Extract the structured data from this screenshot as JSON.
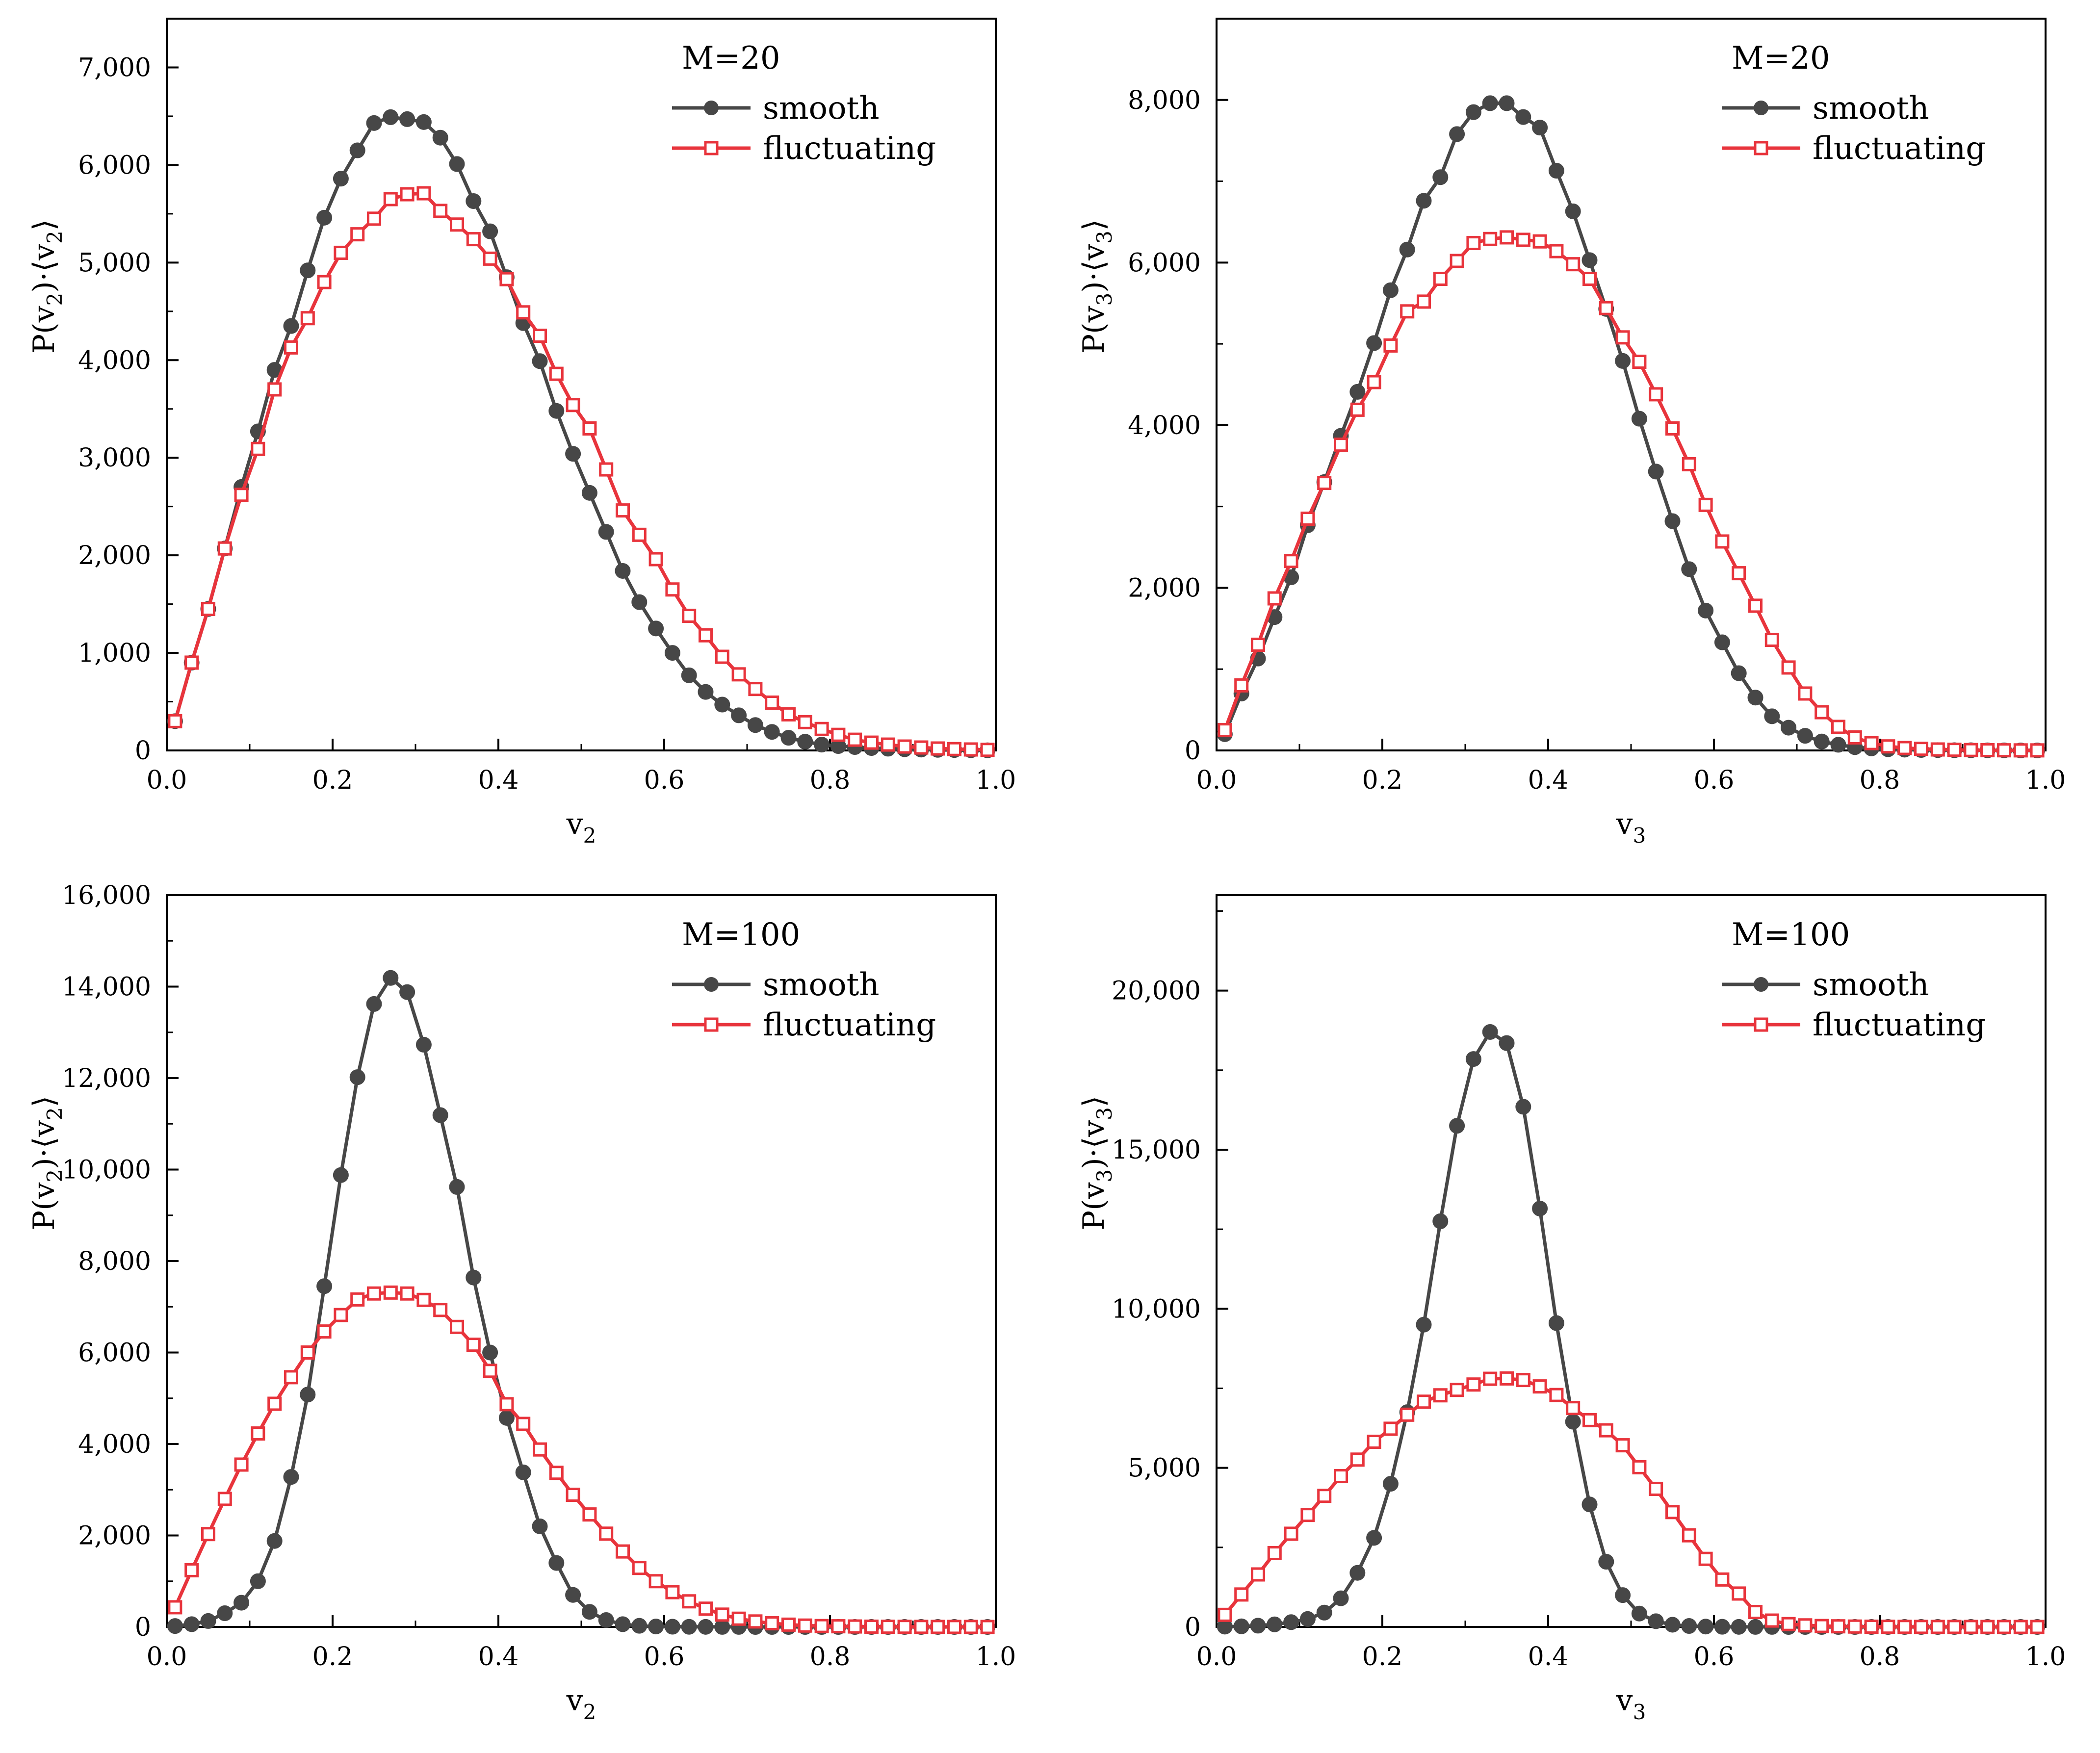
{
  "figure": {
    "series_colors": {
      "smooth": "#474747",
      "fluctuating": "#e8343c"
    },
    "marker_shapes": {
      "smooth": "filled-circle",
      "fluctuating": "open-square"
    }
  },
  "chart_data": [
    {
      "id": "top-left",
      "type": "line",
      "legend_title": "M=20",
      "legend_position": "top-right",
      "xlabel": "v",
      "xlabel_sub": "2",
      "ylabel_parts": [
        "P(v",
        "2",
        ")·⟨v",
        "2",
        "⟩"
      ],
      "xlim": [
        0,
        1
      ],
      "ylim": [
        0,
        7500
      ],
      "xticks": [
        0,
        0.2,
        0.4,
        0.6,
        0.8,
        1.0
      ],
      "xtick_labels": [
        "0.0",
        "0.2",
        "0.4",
        "0.6",
        "0.8",
        "1.0"
      ],
      "yticks": [
        0,
        1000,
        2000,
        3000,
        4000,
        5000,
        6000,
        7000
      ],
      "ytick_labels": [
        "0",
        "1,000",
        "2,000",
        "3,000",
        "4,000",
        "5,000",
        "6,000",
        "7,000"
      ],
      "x": [
        0.01,
        0.03,
        0.05,
        0.07,
        0.09,
        0.11,
        0.13,
        0.15,
        0.17,
        0.19,
        0.21,
        0.23,
        0.25,
        0.27,
        0.29,
        0.31,
        0.33,
        0.35,
        0.37,
        0.39,
        0.41,
        0.43,
        0.45,
        0.47,
        0.49,
        0.51,
        0.53,
        0.55,
        0.57,
        0.59,
        0.61,
        0.63,
        0.65,
        0.67,
        0.69,
        0.71,
        0.73,
        0.75,
        0.77,
        0.79,
        0.81,
        0.83,
        0.85,
        0.87,
        0.89,
        0.91,
        0.93,
        0.95,
        0.97,
        0.99
      ],
      "series": [
        {
          "name": "smooth",
          "values": [
            300,
            900,
            1450,
            2070,
            2700,
            3270,
            3900,
            4350,
            4920,
            5460,
            5860,
            6150,
            6430,
            6490,
            6470,
            6440,
            6280,
            6010,
            5630,
            5320,
            4850,
            4380,
            3990,
            3480,
            3040,
            2640,
            2240,
            1840,
            1520,
            1250,
            1000,
            770,
            600,
            470,
            360,
            260,
            190,
            130,
            90,
            60,
            45,
            35,
            25,
            18,
            12,
            9,
            6,
            4,
            2,
            1
          ]
        },
        {
          "name": "fluctuating",
          "values": [
            300,
            900,
            1450,
            2070,
            2620,
            3090,
            3700,
            4130,
            4430,
            4800,
            5100,
            5290,
            5450,
            5650,
            5700,
            5710,
            5530,
            5390,
            5240,
            5040,
            4830,
            4490,
            4250,
            3860,
            3540,
            3300,
            2880,
            2460,
            2210,
            1960,
            1650,
            1380,
            1180,
            960,
            780,
            630,
            490,
            370,
            290,
            220,
            160,
            110,
            80,
            60,
            40,
            30,
            20,
            14,
            10,
            6
          ]
        }
      ]
    },
    {
      "id": "top-right",
      "type": "line",
      "legend_title": "M=20",
      "legend_position": "top-right",
      "xlabel": "v",
      "xlabel_sub": "3",
      "ylabel_parts": [
        "P(v",
        "3",
        ")·⟨v",
        "3",
        "⟩"
      ],
      "xlim": [
        0,
        1
      ],
      "ylim": [
        0,
        9000
      ],
      "xticks": [
        0,
        0.2,
        0.4,
        0.6,
        0.8,
        1.0
      ],
      "xtick_labels": [
        "0.0",
        "0.2",
        "0.4",
        "0.6",
        "0.8",
        "1.0"
      ],
      "yticks": [
        0,
        2000,
        4000,
        6000,
        8000
      ],
      "ytick_labels": [
        "0",
        "2,000",
        "4,000",
        "6,000",
        "8,000"
      ],
      "x": [
        0.01,
        0.03,
        0.05,
        0.07,
        0.09,
        0.11,
        0.13,
        0.15,
        0.17,
        0.19,
        0.21,
        0.23,
        0.25,
        0.27,
        0.29,
        0.31,
        0.33,
        0.35,
        0.37,
        0.39,
        0.41,
        0.43,
        0.45,
        0.47,
        0.49,
        0.51,
        0.53,
        0.55,
        0.57,
        0.59,
        0.61,
        0.63,
        0.65,
        0.67,
        0.69,
        0.71,
        0.73,
        0.75,
        0.77,
        0.79,
        0.81,
        0.83,
        0.85,
        0.87,
        0.89,
        0.91,
        0.93,
        0.95,
        0.97,
        0.99
      ],
      "series": [
        {
          "name": "smooth",
          "values": [
            200,
            700,
            1130,
            1640,
            2130,
            2770,
            3300,
            3870,
            4410,
            5010,
            5660,
            6160,
            6760,
            7050,
            7580,
            7850,
            7960,
            7960,
            7790,
            7660,
            7130,
            6630,
            6030,
            5430,
            4790,
            4080,
            3430,
            2820,
            2230,
            1720,
            1330,
            950,
            650,
            420,
            280,
            180,
            110,
            70,
            40,
            25,
            15,
            10,
            6,
            4,
            3,
            2,
            1,
            1,
            0,
            0
          ]
        },
        {
          "name": "fluctuating",
          "values": [
            250,
            800,
            1300,
            1870,
            2330,
            2850,
            3290,
            3760,
            4190,
            4530,
            4980,
            5400,
            5520,
            5800,
            6020,
            6240,
            6290,
            6310,
            6280,
            6260,
            6140,
            5980,
            5800,
            5440,
            5080,
            4780,
            4380,
            3960,
            3520,
            3020,
            2570,
            2180,
            1780,
            1360,
            1020,
            700,
            470,
            290,
            160,
            90,
            50,
            30,
            20,
            12,
            8,
            5,
            3,
            2,
            1,
            1
          ]
        }
      ]
    },
    {
      "id": "bottom-left",
      "type": "line",
      "legend_title": "M=100",
      "legend_position": "top-right",
      "xlabel": "v",
      "xlabel_sub": "2",
      "ylabel_parts": [
        "P(v",
        "2",
        ")·⟨v",
        "2",
        "⟩"
      ],
      "xlim": [
        0,
        1
      ],
      "ylim": [
        0,
        16000
      ],
      "xticks": [
        0,
        0.2,
        0.4,
        0.6,
        0.8,
        1.0
      ],
      "xtick_labels": [
        "0.0",
        "0.2",
        "0.4",
        "0.6",
        "0.8",
        "1.0"
      ],
      "yticks": [
        0,
        2000,
        4000,
        6000,
        8000,
        10000,
        12000,
        14000,
        16000
      ],
      "ytick_labels": [
        "0",
        "2,000",
        "4,000",
        "6,000",
        "8,000",
        "10,000",
        "12,000",
        "14,000",
        "16,000"
      ],
      "x": [
        0.01,
        0.03,
        0.05,
        0.07,
        0.09,
        0.11,
        0.13,
        0.15,
        0.17,
        0.19,
        0.21,
        0.23,
        0.25,
        0.27,
        0.29,
        0.31,
        0.33,
        0.35,
        0.37,
        0.39,
        0.41,
        0.43,
        0.45,
        0.47,
        0.49,
        0.51,
        0.53,
        0.55,
        0.57,
        0.59,
        0.61,
        0.63,
        0.65,
        0.67,
        0.69,
        0.71,
        0.73,
        0.75,
        0.77,
        0.79,
        0.81,
        0.83,
        0.85,
        0.87,
        0.89,
        0.91,
        0.93,
        0.95,
        0.97,
        0.99
      ],
      "series": [
        {
          "name": "smooth",
          "values": [
            20,
            60,
            130,
            300,
            530,
            1000,
            1880,
            3280,
            5080,
            7450,
            9880,
            12020,
            13620,
            14190,
            13880,
            12730,
            11190,
            9620,
            7640,
            6000,
            4570,
            3380,
            2200,
            1400,
            700,
            330,
            150,
            60,
            25,
            10,
            5,
            3,
            2,
            1,
            1,
            0,
            0,
            0,
            0,
            0,
            0,
            0,
            0,
            0,
            0,
            0,
            0,
            0,
            0,
            0
          ]
        },
        {
          "name": "fluctuating",
          "values": [
            430,
            1240,
            2030,
            2800,
            3550,
            4230,
            4880,
            5460,
            6000,
            6460,
            6820,
            7160,
            7290,
            7310,
            7290,
            7150,
            6930,
            6560,
            6170,
            5600,
            4870,
            4440,
            3880,
            3370,
            2890,
            2460,
            2040,
            1650,
            1290,
            1000,
            760,
            560,
            400,
            270,
            180,
            120,
            80,
            50,
            30,
            20,
            15,
            10,
            6,
            4,
            3,
            2,
            1,
            1,
            1,
            0
          ]
        }
      ]
    },
    {
      "id": "bottom-right",
      "type": "line",
      "legend_title": "M=100",
      "legend_position": "top-right",
      "xlabel": "v",
      "xlabel_sub": "3",
      "ylabel_parts": [
        "P(v",
        "3",
        ")·⟨v",
        "3",
        "⟩"
      ],
      "xlim": [
        0,
        1
      ],
      "ylim": [
        0,
        23000
      ],
      "xticks": [
        0,
        0.2,
        0.4,
        0.6,
        0.8,
        1.0
      ],
      "xtick_labels": [
        "0.0",
        "0.2",
        "0.4",
        "0.6",
        "0.8",
        "1.0"
      ],
      "yticks": [
        0,
        5000,
        10000,
        15000,
        20000
      ],
      "ytick_labels": [
        "0",
        "5,000",
        "10,000",
        "15,000",
        "20,000"
      ],
      "x": [
        0.01,
        0.03,
        0.05,
        0.07,
        0.09,
        0.11,
        0.13,
        0.15,
        0.17,
        0.19,
        0.21,
        0.23,
        0.25,
        0.27,
        0.29,
        0.31,
        0.33,
        0.35,
        0.37,
        0.39,
        0.41,
        0.43,
        0.45,
        0.47,
        0.49,
        0.51,
        0.53,
        0.55,
        0.57,
        0.59,
        0.61,
        0.63,
        0.65,
        0.67,
        0.69,
        0.71,
        0.73,
        0.75,
        0.77,
        0.79,
        0.81,
        0.83,
        0.85,
        0.87,
        0.89,
        0.91,
        0.93,
        0.95,
        0.97,
        0.99
      ],
      "series": [
        {
          "name": "smooth",
          "values": [
            10,
            20,
            40,
            80,
            150,
            250,
            450,
            900,
            1700,
            2800,
            4500,
            6750,
            9500,
            12750,
            15750,
            17850,
            18700,
            18350,
            16350,
            13150,
            9550,
            6450,
            3850,
            2050,
            1000,
            420,
            180,
            70,
            30,
            12,
            5,
            2,
            1,
            1,
            0,
            0,
            0,
            0,
            0,
            0,
            0,
            0,
            0,
            0,
            0,
            0,
            0,
            0,
            0,
            0
          ]
        },
        {
          "name": "fluctuating",
          "values": [
            380,
            1020,
            1650,
            2320,
            2930,
            3520,
            4120,
            4740,
            5260,
            5820,
            6230,
            6670,
            7080,
            7280,
            7450,
            7620,
            7800,
            7810,
            7760,
            7560,
            7290,
            6880,
            6500,
            6180,
            5710,
            5020,
            4340,
            3610,
            2880,
            2140,
            1490,
            1050,
            470,
            200,
            90,
            50,
            30,
            20,
            12,
            8,
            5,
            3,
            2,
            1,
            1,
            1,
            0,
            0,
            0,
            0
          ]
        }
      ]
    }
  ]
}
